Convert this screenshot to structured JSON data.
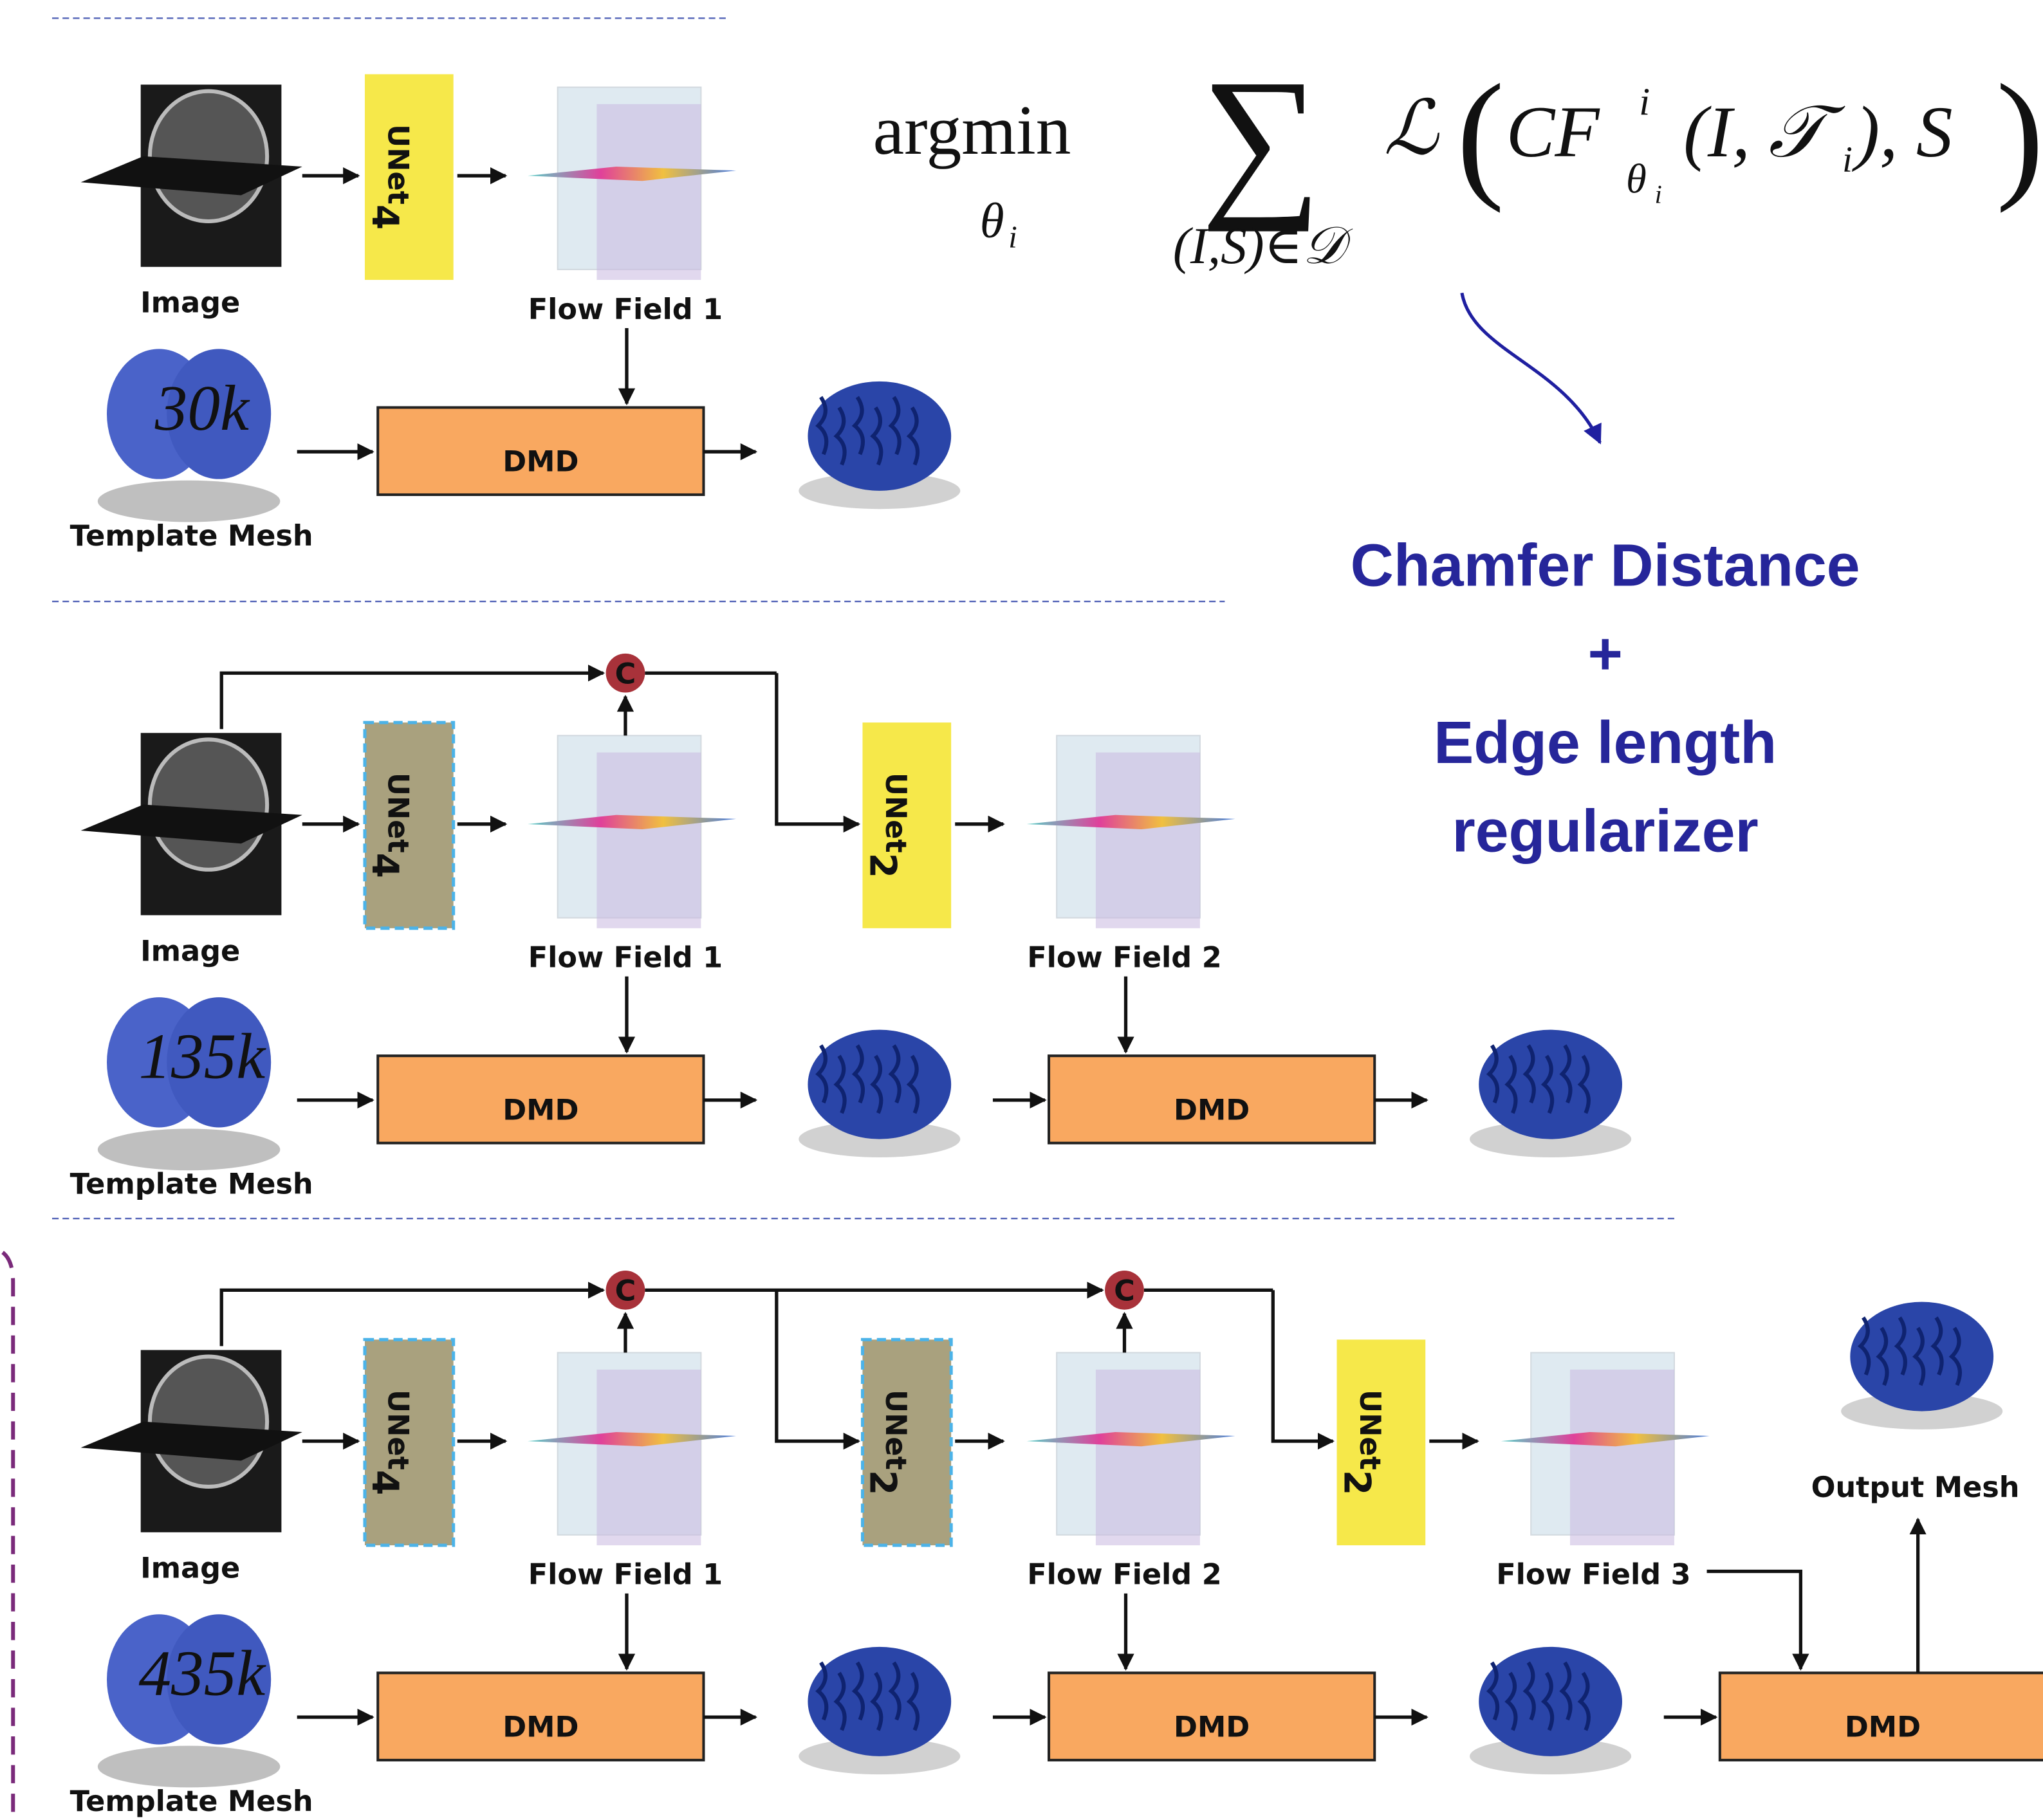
{
  "objective": {
    "parts": [
      "argmin",
      "θ",
      "i",
      "∑",
      "(I,S)∈𝒟",
      "ℒ",
      "(",
      "CF",
      "i",
      "θ",
      "i",
      "(I, 𝒯",
      "i",
      "), S",
      ")"
    ]
  },
  "loss": {
    "line1": "Chamfer Distance",
    "plus": "+",
    "line2": "Edge length",
    "line3": "regularizer"
  },
  "stages": [
    {
      "image_label": "Image",
      "template_label": "Template Mesh",
      "vertices": "30k",
      "unets": [
        {
          "name": "UNet",
          "sub": "4"
        }
      ],
      "flow_fields": [
        "Flow Field 1"
      ],
      "dmd": [
        "DMD"
      ],
      "concat": []
    },
    {
      "image_label": "Image",
      "template_label": "Template Mesh",
      "vertices": "135k",
      "unets": [
        {
          "name": "UNet",
          "sub": "4"
        },
        {
          "name": "UNet",
          "sub": "2"
        }
      ],
      "flow_fields": [
        "Flow Field 1",
        "Flow Field 2"
      ],
      "dmd": [
        "DMD",
        "DMD"
      ],
      "concat": [
        "C"
      ]
    },
    {
      "image_label": "Image",
      "template_label": "Template Mesh",
      "vertices": "435k",
      "unets": [
        {
          "name": "UNet",
          "sub": "4"
        },
        {
          "name": "UNet",
          "sub": "2"
        },
        {
          "name": "UNet",
          "sub": "2"
        }
      ],
      "flow_fields": [
        "Flow Field 1",
        "Flow Field 2",
        "Flow Field 3"
      ],
      "dmd": [
        "DMD",
        "DMD",
        "DMD"
      ],
      "concat": [
        "C",
        "C"
      ],
      "output_label": "Output Mesh"
    }
  ]
}
